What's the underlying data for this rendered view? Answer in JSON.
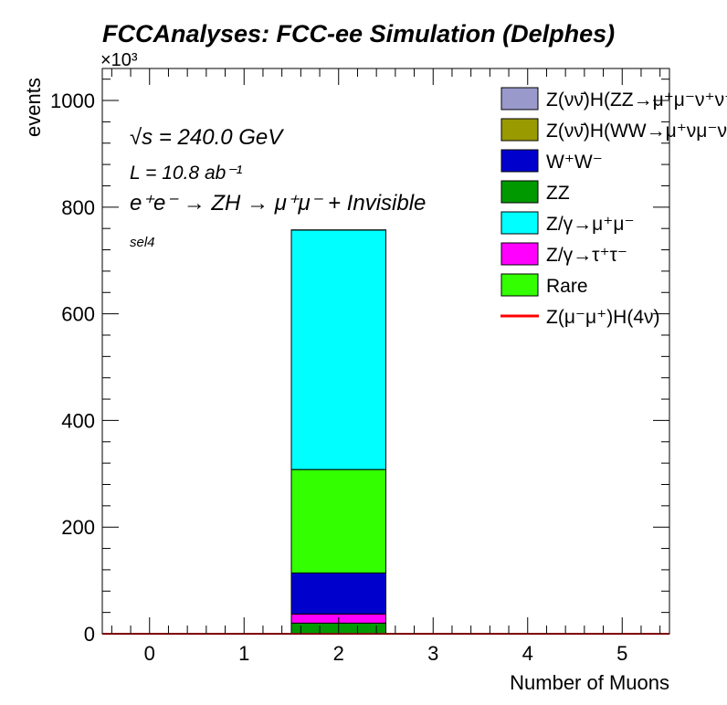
{
  "chart_data": {
    "type": "bar",
    "stacked": true,
    "title": "FCCAnalyses: FCC-ee Simulation (Delphes)",
    "xlabel": "Number of Muons",
    "ylabel": "events",
    "y_multiplier": "×10³",
    "xlim": [
      -0.5,
      5.5
    ],
    "ylim": [
      0,
      1060
    ],
    "x_ticks": [
      0,
      1,
      2,
      3,
      4,
      5
    ],
    "y_ticks": [
      0,
      200,
      400,
      600,
      800,
      1000
    ],
    "bins": [
      0,
      1,
      2,
      3,
      4,
      5
    ],
    "annotations": {
      "sqrts": "√s = 240.0 GeV",
      "lumi": "L = 10.8 ab⁻¹",
      "process": "e⁺e⁻ → ZH → μ⁺μ⁻ + Invisible",
      "selection": "sel4"
    },
    "series": [
      {
        "name": "Z(νν̄)H(ZZ→μ⁺μ⁻ν⁺ν⁻)",
        "color": "#9999cc",
        "values": [
          0,
          0,
          0.1,
          0,
          0,
          0
        ]
      },
      {
        "name": "Z(νν̄)H(WW→μ⁺νμ⁻ν)",
        "color": "#999900",
        "values": [
          0,
          0,
          0.1,
          0,
          0,
          0
        ]
      },
      {
        "name": "W⁺W⁻",
        "color": "#0000cc",
        "values": [
          0,
          0,
          77,
          0,
          0,
          0
        ]
      },
      {
        "name": "ZZ",
        "color": "#009900",
        "values": [
          0,
          0,
          20,
          0,
          0,
          0
        ]
      },
      {
        "name": "Z/γ→μ⁺μ⁻",
        "color": "#00ffff",
        "values": [
          0,
          0,
          449,
          0,
          0,
          0
        ]
      },
      {
        "name": "Z/γ→τ⁺τ⁻",
        "color": "#ff00ff",
        "values": [
          0,
          0,
          17,
          0,
          0,
          0
        ]
      },
      {
        "name": "Rare",
        "color": "#33ff00",
        "values": [
          0,
          0,
          194,
          0,
          0,
          0
        ]
      },
      {
        "name": "Z(μ⁻μ⁺)H(4ν)",
        "color": "#ff0000",
        "style": "line",
        "values": [
          0,
          0,
          0.05,
          0,
          0,
          0
        ]
      }
    ],
    "stack_order_bottom_to_top": [
      "ZZ",
      "Z/γ→τ⁺τ⁻",
      "W⁺W⁻",
      "Rare",
      "Z/γ→μ⁺μ⁻",
      "Z(νν̄)H(WW→μ⁺νμ⁻ν)",
      "Z(νν̄)H(ZZ→μ⁺μ⁻ν⁺ν⁻)"
    ],
    "legend_position": "top-right",
    "grid": false
  }
}
